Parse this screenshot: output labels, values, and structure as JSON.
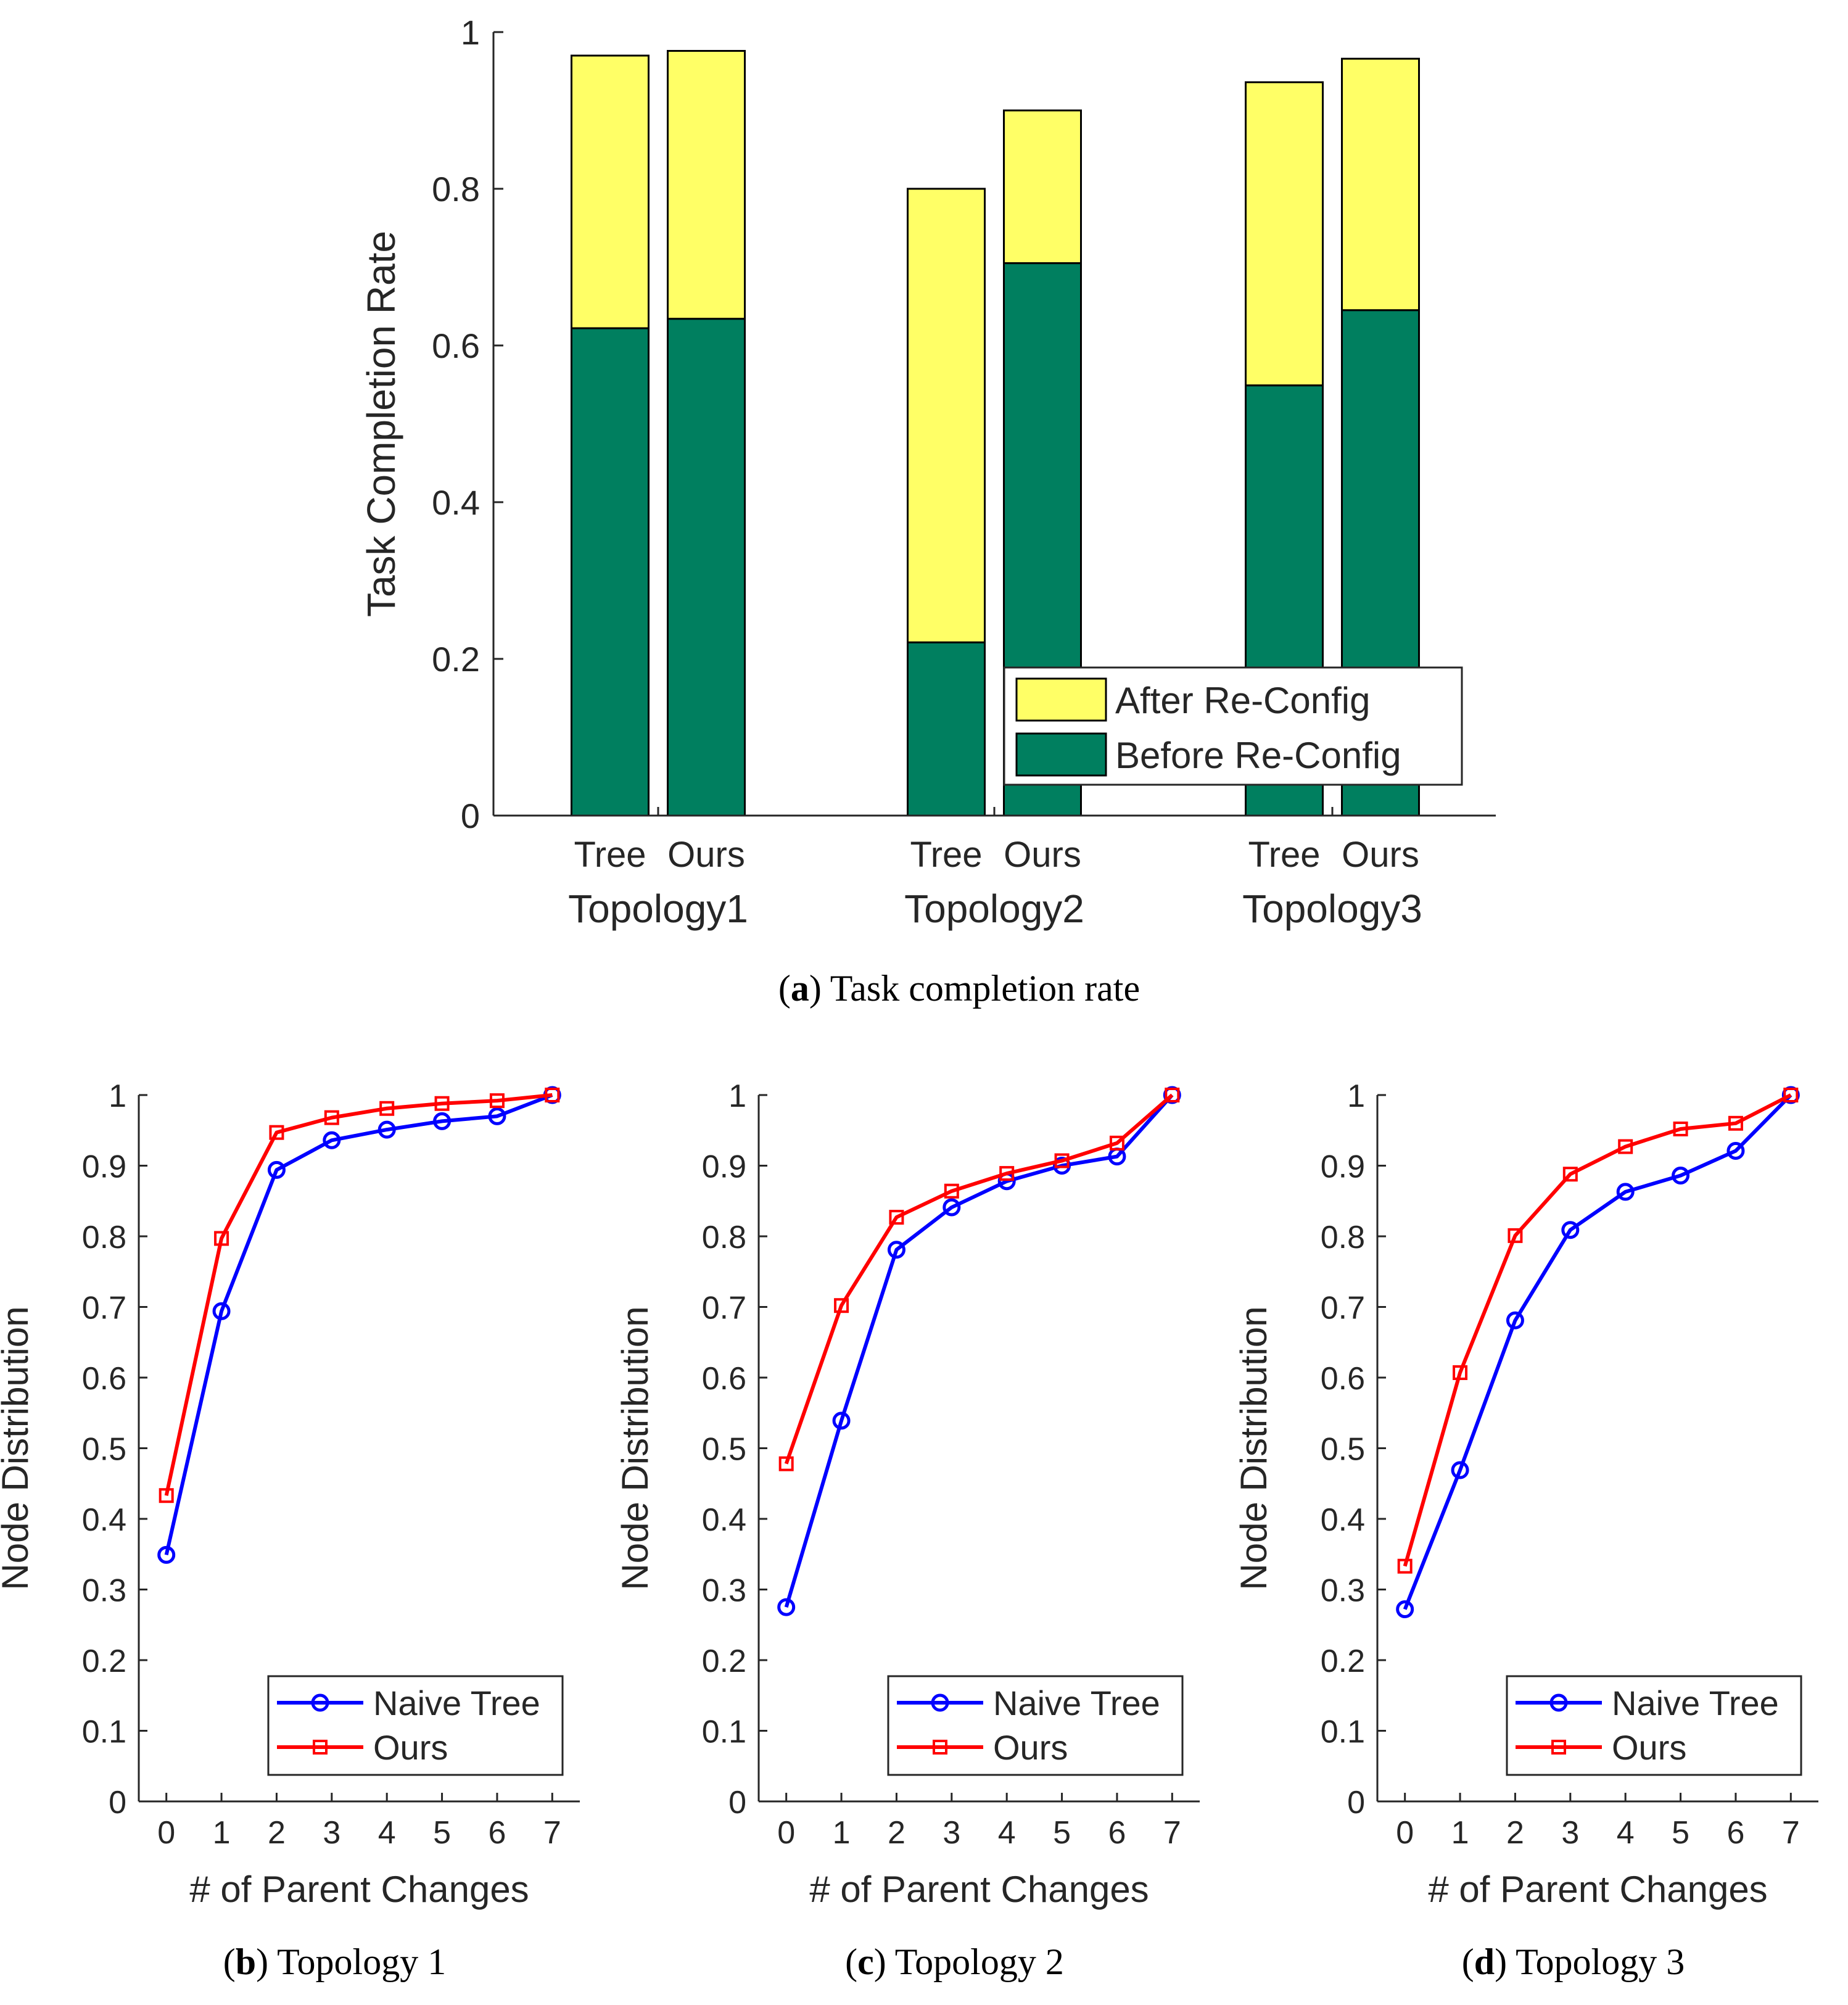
{
  "chart_data": [
    {
      "panel": "a",
      "type": "bar",
      "stacked": true,
      "caption_letter": "a",
      "caption_text": "Task completion rate",
      "ylabel": "Task Completion Rate",
      "ylim": [
        0,
        1
      ],
      "yticks": [
        "0",
        "0.2",
        "0.4",
        "0.6",
        "0.8",
        "1"
      ],
      "groups": [
        {
          "name": "Topology1",
          "bars": [
            {
              "label": "Tree",
              "before": 0.622,
              "after": 0.97
            },
            {
              "label": "Ours",
              "before": 0.634,
              "after": 0.976
            }
          ]
        },
        {
          "name": "Topology2",
          "bars": [
            {
              "label": "Tree",
              "before": 0.221,
              "after": 0.8
            },
            {
              "label": "Ours",
              "before": 0.705,
              "after": 0.9
            }
          ]
        },
        {
          "name": "Topology3",
          "bars": [
            {
              "label": "Tree",
              "before": 0.549,
              "after": 0.936
            },
            {
              "label": "Ours",
              "before": 0.645,
              "after": 0.966
            }
          ]
        }
      ],
      "legend": [
        {
          "label": "After Re-Config",
          "color": "#ffff66"
        },
        {
          "label": "Before Re-Config",
          "color": "#007f5f"
        }
      ],
      "legend_position": "bottom-right"
    },
    {
      "panel": "b",
      "type": "line",
      "caption_letter": "b",
      "caption_text": "Topology 1",
      "xlabel": "# of Parent Changes",
      "ylabel": "Node Distribution",
      "x": [
        0,
        1,
        2,
        3,
        4,
        5,
        6,
        7
      ],
      "xlim": [
        -0.5,
        7.5
      ],
      "ylim": [
        0,
        1
      ],
      "xticks": [
        "0",
        "1",
        "2",
        "3",
        "4",
        "5",
        "6",
        "7"
      ],
      "yticks": [
        "0",
        "0.1",
        "0.2",
        "0.3",
        "0.4",
        "0.5",
        "0.6",
        "0.7",
        "0.8",
        "0.9",
        "1"
      ],
      "series": [
        {
          "name": "Naive Tree",
          "color": "#0000ff",
          "marker": "circle",
          "values": [
            0.349,
            0.694,
            0.894,
            0.936,
            0.951,
            0.963,
            0.97,
            1.0
          ]
        },
        {
          "name": "Ours",
          "color": "#ff0000",
          "marker": "square",
          "values": [
            0.433,
            0.797,
            0.947,
            0.968,
            0.981,
            0.988,
            0.992,
            1.0
          ]
        }
      ],
      "legend_position": "bottom-right"
    },
    {
      "panel": "c",
      "type": "line",
      "caption_letter": "c",
      "caption_text": "Topology 2",
      "xlabel": "# of Parent Changes",
      "ylabel": "Node Distribution",
      "x": [
        0,
        1,
        2,
        3,
        4,
        5,
        6,
        7
      ],
      "xlim": [
        -0.5,
        7.5
      ],
      "ylim": [
        0,
        1
      ],
      "xticks": [
        "0",
        "1",
        "2",
        "3",
        "4",
        "5",
        "6",
        "7"
      ],
      "yticks": [
        "0",
        "0.1",
        "0.2",
        "0.3",
        "0.4",
        "0.5",
        "0.6",
        "0.7",
        "0.8",
        "0.9",
        "1"
      ],
      "series": [
        {
          "name": "Naive Tree",
          "color": "#0000ff",
          "marker": "circle",
          "values": [
            0.275,
            0.539,
            0.781,
            0.841,
            0.878,
            0.9,
            0.913,
            1.0
          ]
        },
        {
          "name": "Ours",
          "color": "#ff0000",
          "marker": "square",
          "values": [
            0.478,
            0.702,
            0.827,
            0.864,
            0.889,
            0.907,
            0.932,
            1.0
          ]
        }
      ],
      "legend_position": "bottom-right"
    },
    {
      "panel": "d",
      "type": "line",
      "caption_letter": "d",
      "caption_text": "Topology 3",
      "xlabel": "# of Parent Changes",
      "ylabel": "Node Distribution",
      "x": [
        0,
        1,
        2,
        3,
        4,
        5,
        6,
        7
      ],
      "xlim": [
        -0.5,
        7.5
      ],
      "ylim": [
        0,
        1
      ],
      "xticks": [
        "0",
        "1",
        "2",
        "3",
        "4",
        "5",
        "6",
        "7"
      ],
      "yticks": [
        "0",
        "0.1",
        "0.2",
        "0.3",
        "0.4",
        "0.5",
        "0.6",
        "0.7",
        "0.8",
        "0.9",
        "1"
      ],
      "series": [
        {
          "name": "Naive Tree",
          "color": "#0000ff",
          "marker": "circle",
          "values": [
            0.272,
            0.469,
            0.681,
            0.809,
            0.863,
            0.886,
            0.921,
            1.0
          ]
        },
        {
          "name": "Ours",
          "color": "#ff0000",
          "marker": "square",
          "values": [
            0.333,
            0.607,
            0.801,
            0.888,
            0.927,
            0.952,
            0.96,
            1.0
          ]
        }
      ],
      "legend_position": "bottom-right"
    }
  ]
}
